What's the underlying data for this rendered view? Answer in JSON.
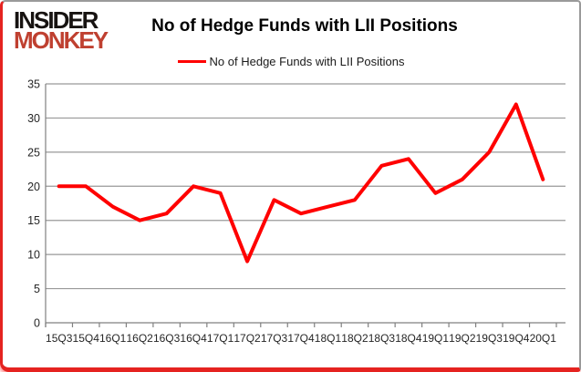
{
  "logo": {
    "line1": "INSIDER",
    "line2": "MONKEY"
  },
  "header": {
    "title": "No of Hedge Funds with LII Positions"
  },
  "legend": {
    "label": "No of Hedge Funds with LII Positions",
    "line_color": "#ff0000"
  },
  "chart_data": {
    "type": "line",
    "title": "No of Hedge Funds with LII Positions",
    "categories": [
      "15Q3",
      "15Q4",
      "16Q1",
      "16Q2",
      "16Q3",
      "16Q4",
      "17Q1",
      "17Q2",
      "17Q3",
      "17Q4",
      "18Q1",
      "18Q2",
      "18Q3",
      "18Q4",
      "19Q1",
      "19Q2",
      "19Q3",
      "19Q4",
      "20Q1"
    ],
    "values": [
      20,
      20,
      17,
      15,
      16,
      20,
      19,
      9,
      18,
      16,
      17,
      18,
      23,
      24,
      19,
      21,
      25,
      32,
      21
    ],
    "series_name": "No of Hedge Funds with LII Positions",
    "xlabel": "",
    "ylabel": "",
    "ylim": [
      0,
      35
    ],
    "ytick_step": 5,
    "yticks": [
      0,
      5,
      10,
      15,
      20,
      25,
      30,
      35
    ],
    "grid": true,
    "legend_position": "top",
    "line_color": "#ff0000",
    "grid_color": "#999999",
    "axis_color": "#808080",
    "label_color": "#262626"
  },
  "colors": {
    "card_border_red": "#e52320",
    "card_border_gray": "#9a9a9a",
    "logo_black": "#171311",
    "logo_red": "#bf4030",
    "background": "#ffffff"
  }
}
